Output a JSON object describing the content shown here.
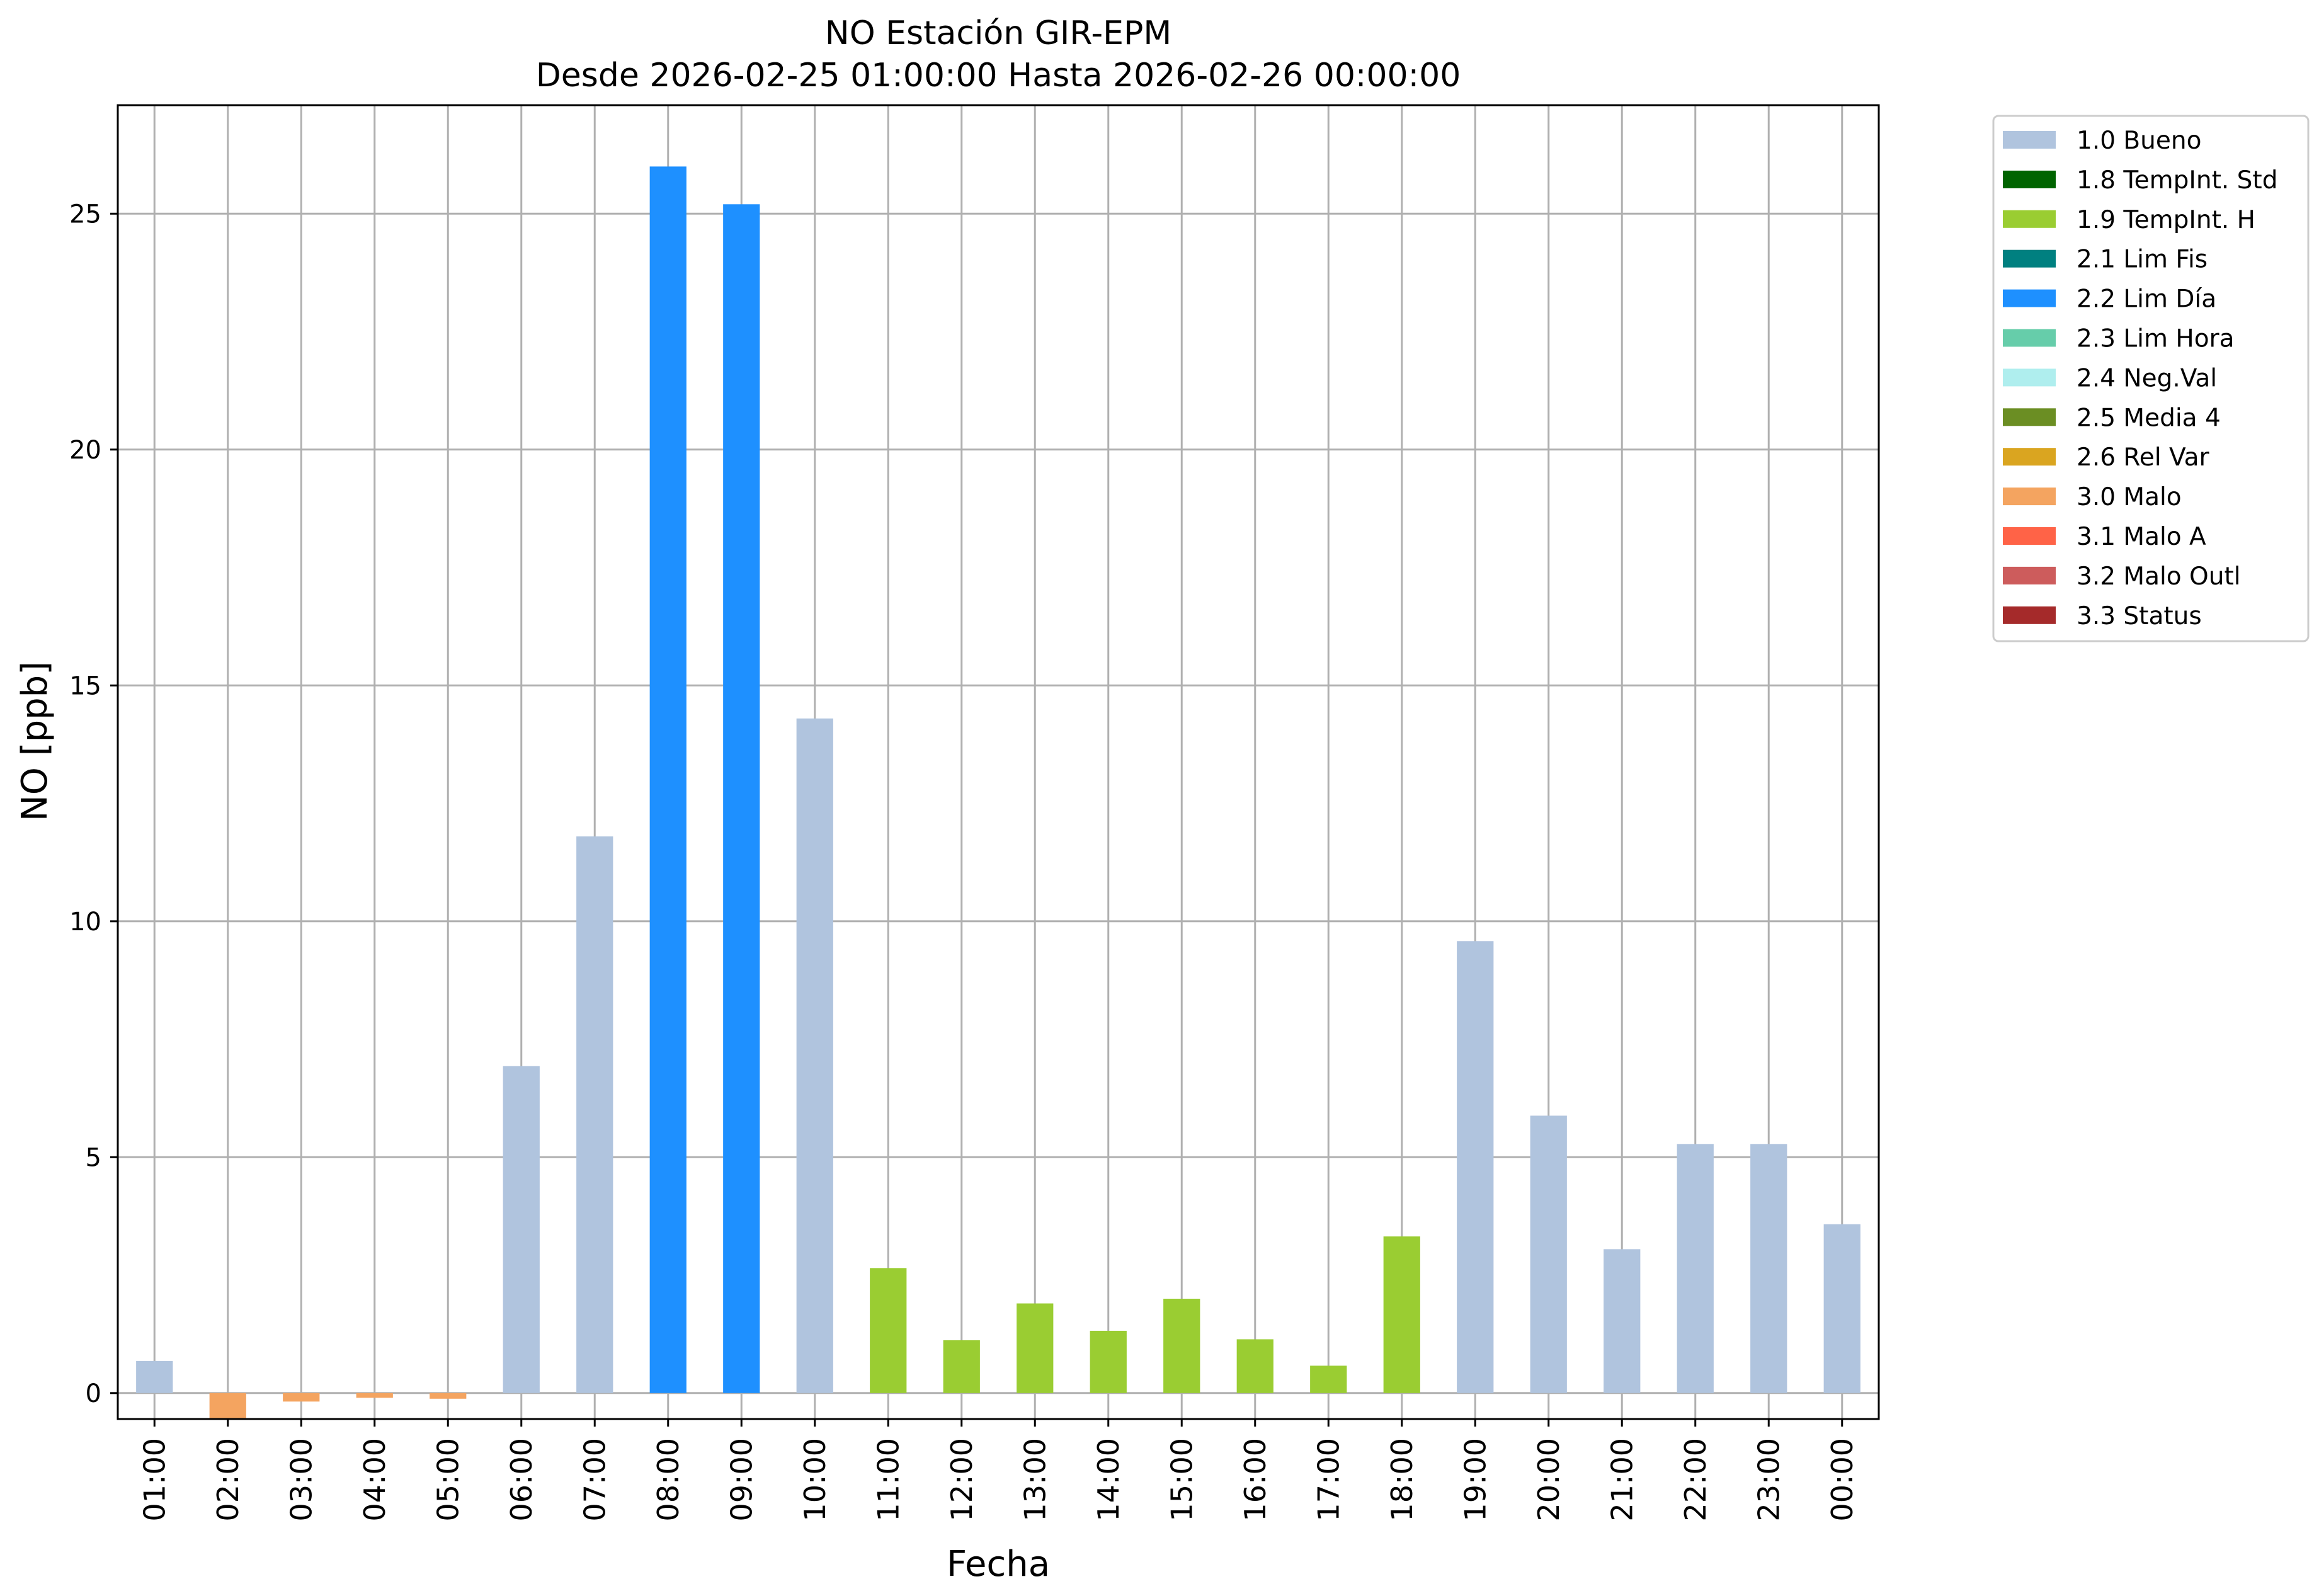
{
  "chart_data": {
    "type": "bar",
    "title": "NO Estación GIR-EPM",
    "subtitle": "Desde 2026-02-25 01:00:00 Hasta 2026-02-26 00:00:00",
    "xlabel": "Fecha",
    "ylabel": "NO [ppb]",
    "ylim": [
      -0.55,
      27.3
    ],
    "yticks": [
      0,
      5,
      10,
      15,
      20,
      25
    ],
    "grid": true,
    "legend_position": "outside-top-right",
    "categories": [
      "01:00",
      "02:00",
      "03:00",
      "04:00",
      "05:00",
      "06:00",
      "07:00",
      "08:00",
      "09:00",
      "10:00",
      "11:00",
      "12:00",
      "13:00",
      "14:00",
      "15:00",
      "16:00",
      "17:00",
      "18:00",
      "19:00",
      "20:00",
      "21:00",
      "22:00",
      "23:00",
      "00:00"
    ],
    "values": [
      0.68,
      -0.55,
      -0.18,
      -0.1,
      -0.12,
      6.93,
      11.8,
      26.0,
      25.2,
      14.3,
      2.65,
      1.12,
      1.9,
      1.32,
      2.0,
      1.14,
      0.58,
      3.32,
      9.58,
      5.88,
      3.05,
      5.28,
      5.28,
      3.58
    ],
    "flags": [
      "1.0 Bueno",
      "3.0 Malo",
      "3.0 Malo",
      "3.0 Malo",
      "3.0 Malo",
      "1.0 Bueno",
      "1.0 Bueno",
      "2.2 Lim Día",
      "2.2 Lim Día",
      "1.0 Bueno",
      "1.9 TempInt. H",
      "1.9 TempInt. H",
      "1.9 TempInt. H",
      "1.9 TempInt. H",
      "1.9 TempInt. H",
      "1.9 TempInt. H",
      "1.9 TempInt. H",
      "1.9 TempInt. H",
      "1.0 Bueno",
      "1.0 Bueno",
      "1.0 Bueno",
      "1.0 Bueno",
      "1.0 Bueno",
      "1.0 Bueno"
    ],
    "legend": [
      {
        "name": "1.0 Bueno",
        "color": "#b0c4de"
      },
      {
        "name": "1.8 TempInt. Std",
        "color": "#006400"
      },
      {
        "name": "1.9 TempInt. H",
        "color": "#9acd32"
      },
      {
        "name": "2.1 Lim Fis",
        "color": "#008080"
      },
      {
        "name": "2.2 Lim Día",
        "color": "#1e90ff"
      },
      {
        "name": "2.3 Lim Hora",
        "color": "#66cdaa"
      },
      {
        "name": "2.4 Neg.Val",
        "color": "#afeeee"
      },
      {
        "name": "2.5 Media 4",
        "color": "#6b8e23"
      },
      {
        "name": "2.6 Rel Var",
        "color": "#daa520"
      },
      {
        "name": "3.0 Malo",
        "color": "#f4a460"
      },
      {
        "name": "3.1 Malo A",
        "color": "#ff6347"
      },
      {
        "name": "3.2 Malo Outl",
        "color": "#cd5c5c"
      },
      {
        "name": "3.3 Status",
        "color": "#a52a2a"
      }
    ]
  }
}
